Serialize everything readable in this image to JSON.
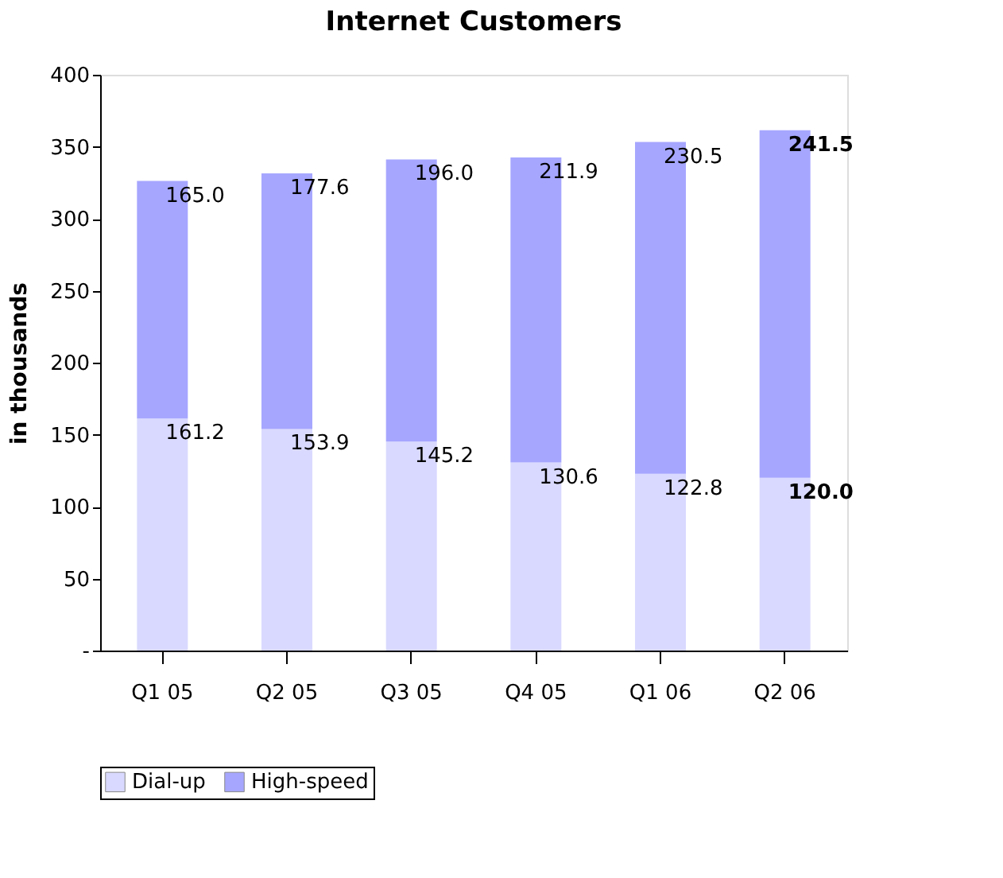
{
  "chart_data": {
    "type": "bar",
    "title": "Internet Customers",
    "ylabel": "in thousands",
    "categories": [
      "Q1 05",
      "Q2 05",
      "Q3 05",
      "Q4 05",
      "Q1 06",
      "Q2 06"
    ],
    "stacked": true,
    "series": [
      {
        "name": "Dial-up",
        "color": "#d9d9ff",
        "values": [
          161.2,
          153.9,
          145.2,
          130.6,
          122.8,
          120.0
        ],
        "value_labels": [
          "161.2",
          "153.9",
          "145.2",
          "130.6",
          "122.8",
          "120.0"
        ]
      },
      {
        "name": "High-speed",
        "color": "#a6a6ff",
        "values": [
          165.0,
          177.6,
          196.0,
          211.9,
          230.5,
          241.5
        ],
        "value_labels": [
          "165.0",
          "177.6",
          "196.0",
          "211.9",
          "230.5",
          "241.5"
        ]
      }
    ],
    "ylim": [
      0,
      400
    ],
    "yticks": [
      {
        "value": 0,
        "label": "-"
      },
      50,
      100,
      150,
      200,
      250,
      300,
      350,
      400
    ],
    "grid": false,
    "legend": "bottom"
  }
}
